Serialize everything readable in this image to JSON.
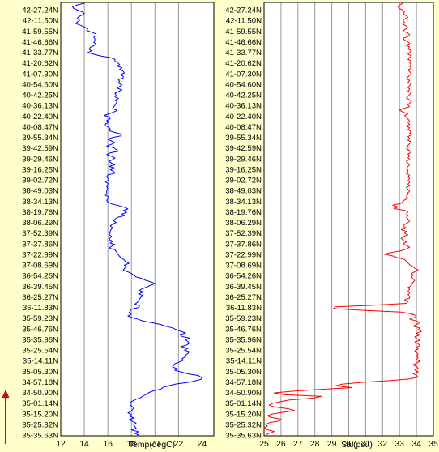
{
  "latitude_labels": [
    "42-27.24N",
    "42-11.50N",
    "41-59.55N",
    "41-46.66N",
    "41-33.77N",
    "41-20.62N",
    "41-07.30N",
    "40-54.60N",
    "40-42.25N",
    "40-36.13N",
    "40-22.40N",
    "40-08.47N",
    "39-55.34N",
    "39-42.59N",
    "39-29.46N",
    "39-16.25N",
    "39-02.72N",
    "38-49.03N",
    "38-34.13N",
    "38-19.76N",
    "38-06.29N",
    "37-52.39N",
    "37-37.86N",
    "37-22.99N",
    "37-08.69N",
    "36-54.26N",
    "36-39.45N",
    "36-25.27N",
    "36-11.83N",
    "35-59.23N",
    "35-46.76N",
    "35-35.96N",
    "35-25.54N",
    "35-14.11N",
    "35-05.30N",
    "34-57.18N",
    "34-50.90N",
    "35-01.14N",
    "35-15.20N",
    "35-25.32N",
    "35-35.63N"
  ],
  "chart_data": [
    {
      "type": "line",
      "xlabel": "Temp(degC)",
      "xlim": [
        12,
        25
      ],
      "xticks": [
        12,
        14,
        16,
        18,
        20,
        22,
        24
      ],
      "grid": true,
      "color": "#0000ff",
      "y_axis": "latitude_labels (top = first)",
      "series": [
        {
          "x": [
            14.0,
            13.4,
            13.0,
            13.1,
            13.4,
            13.8,
            14.0,
            13.8,
            13.5,
            13.4,
            13.6,
            13.4,
            13.3,
            13.7,
            14.0,
            14.3,
            14.2,
            14.6,
            15.0,
            15.0,
            14.8,
            14.9,
            14.9,
            14.8,
            15.0,
            14.8,
            14.5,
            14.4,
            14.6,
            14.3,
            14.8,
            15.4,
            16.2,
            16.6,
            16.6,
            16.8,
            17.0,
            16.8,
            17.2,
            17.0,
            17.3,
            17.4,
            17.1,
            17.3,
            17.3,
            16.9,
            17.0,
            16.9,
            17.2,
            17.0,
            16.8,
            17.2,
            16.9,
            16.6,
            16.7,
            16.6,
            16.9,
            16.6,
            16.8,
            16.7,
            16.6,
            16.5,
            16.4,
            16.8,
            16.5,
            16.1,
            15.7,
            16.1,
            16.2,
            15.9,
            16.1,
            15.8,
            15.8,
            16.1,
            16.2,
            16.1,
            16.6,
            17.2,
            17.1,
            16.4,
            16.0,
            16.3,
            16.6,
            16.3,
            15.9,
            16.5,
            16.7,
            16.9,
            16.2,
            15.9,
            16.3,
            16.6,
            16.4,
            16.1,
            16.3,
            16.6,
            16.1,
            16.6,
            16.2,
            16.5,
            16.6,
            16.0,
            15.9,
            16.0,
            16.1,
            15.8,
            16.0,
            16.0,
            15.9,
            16.0,
            15.9,
            15.9,
            15.9,
            15.8,
            16.1,
            16.0,
            15.9,
            16.0,
            16.3,
            16.9,
            17.4,
            17.7,
            17.3,
            17.6,
            17.2,
            17.4,
            16.8,
            16.6,
            16.5,
            16.7,
            16.4,
            16.2,
            16.4,
            16.3,
            16.2,
            16.2,
            16.1,
            16.3,
            16.2,
            16.1,
            16.4,
            16.2,
            16.6,
            16.3,
            16.1,
            16.6,
            16.7,
            16.8,
            16.9,
            17.0,
            17.2,
            17.4,
            17.5,
            17.8,
            17.4,
            17.6,
            17.4,
            17.3,
            17.7,
            18.0,
            18.2,
            18.4,
            18.9,
            19.2,
            19.7,
            20.0,
            19.6,
            19.3,
            18.9,
            18.7,
            19.0,
            18.6,
            19.0,
            18.8,
            18.7,
            18.6,
            18.5,
            18.3,
            18.7,
            18.6,
            18.0,
            17.9,
            17.8,
            18.0,
            17.7,
            18.1,
            18.6,
            19.0,
            19.8,
            20.5,
            20.9,
            21.5,
            21.8,
            22.2,
            22.6,
            22.1,
            22.3,
            22.9,
            22.6,
            22.8,
            22.9,
            22.7,
            22.2,
            22.8,
            22.5,
            22.9,
            22.8,
            22.6,
            22.6,
            22.3,
            22.4,
            22.1,
            21.7,
            21.6,
            21.5,
            21.9,
            21.7,
            22.3,
            22.8,
            23.7,
            23.9,
            24.0,
            23.5,
            22.9,
            21.8,
            21.2,
            20.7,
            20.5,
            19.9,
            19.5,
            19.3,
            19.0,
            18.8,
            18.4,
            18.1,
            17.9,
            17.9,
            18.0,
            18.2,
            18.1,
            18.0,
            17.7,
            18.0,
            17.9,
            18.2,
            17.8,
            18.1,
            18.4,
            18.2,
            18.3,
            18.4,
            18.0,
            18.6,
            18.3,
            18.6
          ]
        }
      ]
    },
    {
      "type": "line",
      "xlabel": "Sal(psu)",
      "xlim": [
        25,
        35
      ],
      "xticks": [
        25,
        26,
        27,
        28,
        29,
        30,
        31,
        32,
        33,
        34,
        35
      ],
      "grid": true,
      "color": "#ff0000",
      "y_axis": "latitude_labels (top = first)",
      "series": [
        {
          "x": [
            33.2,
            33.0,
            32.9,
            33.0,
            33.2,
            33.3,
            33.2,
            33.4,
            33.5,
            33.3,
            33.2,
            33.3,
            33.2,
            33.4,
            33.5,
            33.3,
            33.2,
            33.5,
            33.6,
            33.5,
            33.2,
            33.3,
            33.5,
            33.6,
            33.4,
            33.6,
            33.5,
            33.7,
            33.6,
            33.5,
            33.7,
            33.6,
            33.5,
            33.7,
            33.6,
            33.7,
            33.6,
            33.7,
            33.5,
            33.6,
            33.7,
            33.6,
            33.5,
            33.4,
            33.6,
            33.5,
            33.7,
            33.6,
            33.5,
            33.6,
            33.5,
            33.7,
            33.6,
            33.5,
            33.4,
            33.6,
            33.7,
            33.6,
            33.5,
            33.6,
            33.2,
            33.0,
            33.2,
            33.5,
            33.3,
            33.4,
            33.5,
            33.6,
            33.5,
            33.6,
            33.4,
            33.6,
            33.5,
            33.7,
            33.6,
            33.7,
            33.5,
            33.6,
            33.5,
            33.7,
            33.6,
            33.5,
            33.5,
            33.4,
            33.6,
            33.7,
            33.5,
            33.6,
            33.5,
            33.6,
            33.4,
            33.5,
            33.6,
            33.5,
            33.4,
            33.5,
            33.5,
            33.4,
            33.6,
            33.5,
            33.6,
            33.5,
            33.6,
            33.5,
            33.6,
            33.4,
            33.5,
            33.6,
            33.5,
            33.5,
            33.4,
            33.5,
            33.3,
            33.2,
            33.1,
            32.6,
            32.9,
            32.7,
            33.3,
            33.5,
            33.4,
            33.5,
            33.4,
            33.5,
            33.6,
            33.5,
            33.3,
            33.2,
            33.4,
            33.1,
            33.4,
            33.3,
            33.5,
            33.2,
            33.1,
            33.2,
            33.4,
            33.2,
            33.4,
            33.6,
            33.4,
            33.1,
            32.5,
            32.1,
            32.6,
            32.9,
            33.3,
            33.4,
            33.5,
            33.6,
            33.8,
            33.9,
            34.1,
            33.9,
            33.7,
            33.8,
            33.7,
            33.8,
            33.9,
            33.8,
            33.7,
            33.7,
            33.5,
            33.6,
            33.5,
            33.6,
            33.5,
            33.6,
            33.6,
            33.3,
            33.5,
            33.4,
            31.5,
            29.2,
            29.1,
            31.0,
            33.1,
            33.7,
            34.0,
            33.9,
            33.6,
            34.0,
            34.2,
            34.0,
            33.8,
            34.2,
            34.1,
            34.3,
            34.0,
            34.2,
            33.9,
            34.0,
            34.2,
            33.9,
            34.1,
            34.2,
            34.0,
            34.1,
            33.9,
            34.0,
            34.1,
            34.0,
            34.1,
            34.0,
            34.2,
            34.0,
            33.8,
            34.0,
            34.1,
            33.9,
            34.1,
            33.8,
            34.0,
            34.1,
            33.6,
            32.5,
            30.8,
            29.6,
            29.2,
            30.2,
            28.3,
            26.8,
            25.6,
            26.2,
            28.4,
            27.9,
            26.5,
            26.0,
            25.5,
            25.3,
            25.6,
            26.4,
            26.8,
            26.2,
            25.5,
            25.2,
            25.4,
            26.0,
            25.9,
            25.3,
            25.1,
            25.2,
            25.0,
            25.2,
            25.6,
            25.3,
            25.1
          ]
        }
      ]
    }
  ]
}
